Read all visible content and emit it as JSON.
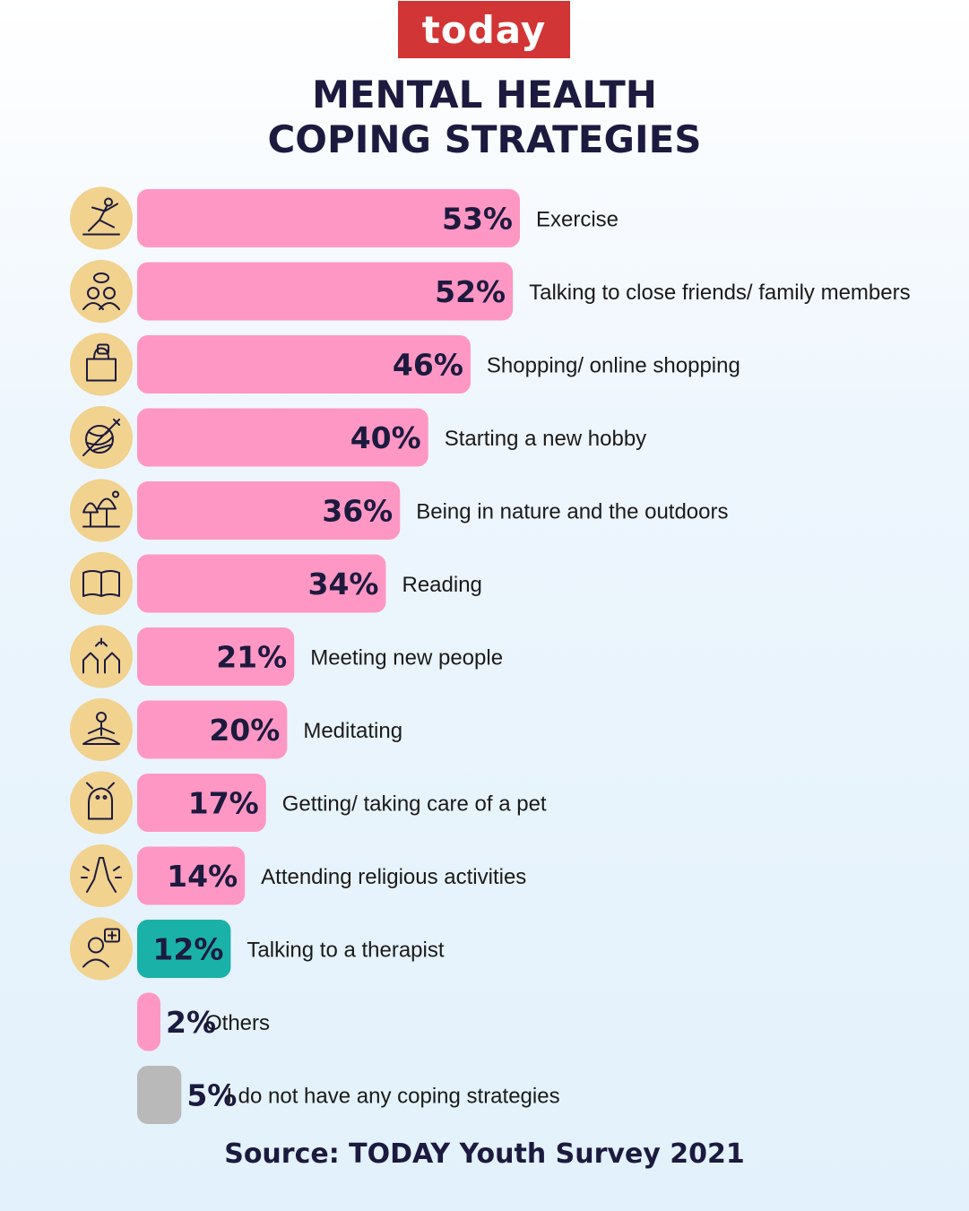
{
  "brand": {
    "logo_text": "today",
    "logo_color": "#d23535"
  },
  "title_lines": [
    "MENTAL HEALTH",
    "COPING STRATEGIES"
  ],
  "source": "Source: TODAY Youth Survey 2021",
  "colors": {
    "bar_default": "#fe97c3",
    "bar_highlight": "#1ab1a8",
    "bar_neutral": "#b9b9b9",
    "icon_circle": "#f1d28e",
    "text": "#1c1a3f"
  },
  "chart_data": {
    "type": "bar",
    "orientation": "horizontal",
    "title": "MENTAL HEALTH COPING STRATEGIES",
    "categories": [
      "Exercise",
      "Talking to close friends/ family members",
      "Shopping/ online shopping",
      "Starting a new hobby",
      "Being in nature and the outdoors",
      "Reading",
      "Meeting new people",
      "Meditating",
      "Getting/ taking care of a pet",
      "Attending religious activities",
      "Talking to a therapist",
      "Others",
      "I do not have any coping strategies"
    ],
    "values": [
      53,
      52,
      46,
      40,
      36,
      34,
      21,
      20,
      17,
      14,
      12,
      2,
      5
    ],
    "value_labels": [
      "53%",
      "52%",
      "46%",
      "40%",
      "36%",
      "34%",
      "21%",
      "20%",
      "17%",
      "14%",
      "12%",
      "2%",
      "5%"
    ],
    "bar_colors": [
      "pink",
      "pink",
      "pink",
      "pink",
      "pink",
      "pink",
      "pink",
      "pink",
      "pink",
      "pink",
      "teal",
      "pink",
      "grey"
    ],
    "icons": [
      "exercise-icon",
      "friends-talking-icon",
      "shopping-bag-icon",
      "yarn-hobby-icon",
      "nature-trees-icon",
      "book-icon",
      "meeting-people-icon",
      "meditation-icon",
      "pet-icon",
      "praying-hands-icon",
      "therapist-icon",
      "",
      ""
    ],
    "unit": "%",
    "xlim": [
      0,
      53
    ]
  }
}
